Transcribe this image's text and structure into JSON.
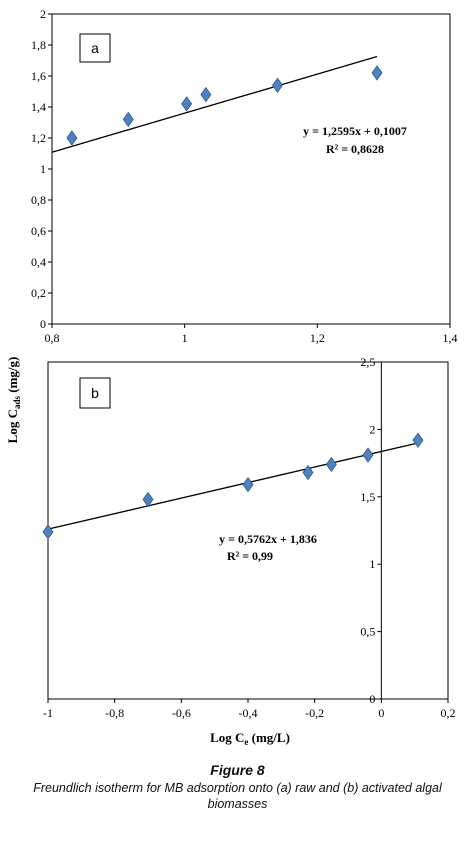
{
  "y_axis_label_main": "Log C",
  "y_axis_label_sub": "ads",
  "y_axis_label_unit": " (mg/g)",
  "caption": {
    "title": "Figure 8",
    "text": "Freundlich isotherm for MB adsorption onto (a) raw and (b) activated algal biomasses"
  },
  "chart_data": [
    {
      "type": "scatter",
      "panel_label": "a",
      "xlim": [
        0.8,
        1.4
      ],
      "ylim": [
        0,
        2
      ],
      "x_ticks": [
        0.8,
        1,
        1.2,
        1.4
      ],
      "x_tick_labels": [
        "0,8",
        "1",
        "1,2",
        "1,4"
      ],
      "y_ticks": [
        0,
        0.2,
        0.4,
        0.6,
        0.8,
        1,
        1.2,
        1.4,
        1.6,
        1.8,
        2
      ],
      "y_tick_labels": [
        "0",
        "0,2",
        "0,4",
        "0,6",
        "0,8",
        "1",
        "1,2",
        "1,4",
        "1,6",
        "1,8",
        "2"
      ],
      "points": [
        {
          "x": 0.83,
          "y": 1.2
        },
        {
          "x": 0.915,
          "y": 1.32
        },
        {
          "x": 1.003,
          "y": 1.42
        },
        {
          "x": 1.032,
          "y": 1.48
        },
        {
          "x": 1.14,
          "y": 1.54
        },
        {
          "x": 1.29,
          "y": 1.62
        }
      ],
      "trendline": {
        "slope": 1.2595,
        "intercept": 0.1007,
        "x_range": [
          0.8,
          1.29
        ]
      },
      "equation": "y = 1,2595x + 0,1007",
      "r2": "R² = 0,8628",
      "grid": false
    },
    {
      "type": "scatter",
      "panel_label": "b",
      "xlim": [
        -1.0,
        0.2
      ],
      "ylim": [
        0,
        2.5
      ],
      "x_ticks": [
        -1,
        -0.8,
        -0.6,
        -0.4,
        -0.2,
        0,
        0.2
      ],
      "x_tick_labels": [
        "-1",
        "-0,8",
        "-0,6",
        "-0,4",
        "-0,2",
        "0",
        "0,2"
      ],
      "y_ticks": [
        0,
        0.5,
        1,
        1.5,
        2,
        2.5
      ],
      "y_tick_labels": [
        "0",
        "0,5",
        "1",
        "1,5",
        "2",
        "2,5"
      ],
      "xlabel_main": "Log C",
      "xlabel_sub": "e",
      "xlabel_unit": " (mg/L)",
      "points": [
        {
          "x": -1.0,
          "y": 1.24
        },
        {
          "x": -0.7,
          "y": 1.48
        },
        {
          "x": -0.4,
          "y": 1.59
        },
        {
          "x": -0.22,
          "y": 1.68
        },
        {
          "x": -0.15,
          "y": 1.74
        },
        {
          "x": -0.04,
          "y": 1.81
        },
        {
          "x": 0.11,
          "y": 1.92
        }
      ],
      "trendline": {
        "slope": 0.5762,
        "intercept": 1.836,
        "x_range": [
          -1.0,
          0.11
        ]
      },
      "equation": "y = 0,5762x + 1,836",
      "r2": "R² = 0,99",
      "grid": false
    }
  ]
}
